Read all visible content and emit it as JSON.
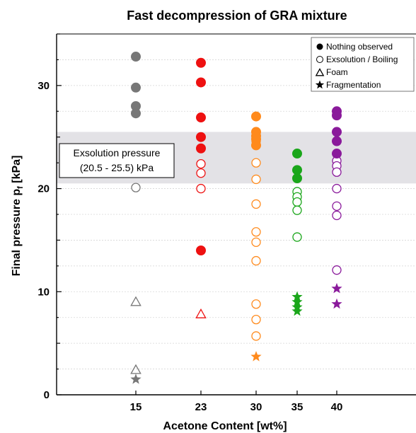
{
  "chart_data": {
    "type": "scatter",
    "title": "Fast decompression of GRA mixture",
    "xlabel": "Acetone Content [wt%]",
    "ylabel_main": "Final pressure p",
    "ylabel_sub": "f",
    "ylabel_unit": " [kPa]",
    "categories": [
      "15",
      "23",
      "30",
      "35",
      "40"
    ],
    "ylim": [
      0,
      35
    ],
    "y_ticks": [
      "0",
      "10",
      "20",
      "30"
    ],
    "y_tick_values": [
      0,
      10,
      20,
      30
    ],
    "grid": true,
    "band": {
      "from": 20.5,
      "to": 25.5,
      "color": "#e3e2e6"
    },
    "annotation": {
      "line1": "Exsolution pressure",
      "line2": "(20.5 - 25.5) kPa"
    },
    "legend": {
      "placement": "top-right",
      "entries": [
        {
          "marker": "filled-circle",
          "label": "Nothing observed"
        },
        {
          "marker": "open-circle",
          "label": "Exsolution / Boiling"
        },
        {
          "marker": "triangle",
          "label": "Foam"
        },
        {
          "marker": "star",
          "label": "Fragmentation"
        }
      ]
    },
    "series": [
      {
        "category": "15",
        "color": "#777777",
        "nothing_observed": [
          32.8,
          29.8,
          28.0,
          27.3
        ],
        "exsolution_boiling": [
          20.1
        ],
        "foam": [
          9.0,
          2.4
        ],
        "fragmentation": [
          1.5
        ]
      },
      {
        "category": "23",
        "color": "#ee1111",
        "nothing_observed": [
          32.2,
          30.3,
          26.9,
          25.0,
          23.9,
          14.0
        ],
        "exsolution_boiling": [
          22.4,
          21.5,
          20.0
        ],
        "foam": [
          7.8
        ],
        "fragmentation": []
      },
      {
        "category": "30",
        "color": "#ff8a1c",
        "nothing_observed": [
          27.0,
          25.5,
          25.1,
          24.8,
          24.2
        ],
        "exsolution_boiling": [
          24.6,
          22.5,
          20.9,
          18.5,
          15.8,
          14.8,
          13.0,
          8.8,
          7.3,
          5.7
        ],
        "foam": [],
        "fragmentation": [
          3.7
        ]
      },
      {
        "category": "35",
        "color": "#1aa61a",
        "nothing_observed": [
          23.4,
          21.8,
          21.0
        ],
        "exsolution_boiling": [
          19.7,
          19.2,
          18.7,
          17.9,
          15.3
        ],
        "foam": [],
        "fragmentation": [
          9.5,
          9.0,
          8.5,
          8.1
        ]
      },
      {
        "category": "40",
        "color": "#8a1a9b",
        "nothing_observed": [
          27.5,
          27.1,
          25.5,
          24.6,
          23.4
        ],
        "exsolution_boiling": [
          22.7,
          22.2,
          21.6,
          20.0,
          18.3,
          17.4,
          12.1
        ],
        "foam": [],
        "fragmentation": [
          10.3,
          8.8
        ]
      }
    ]
  }
}
